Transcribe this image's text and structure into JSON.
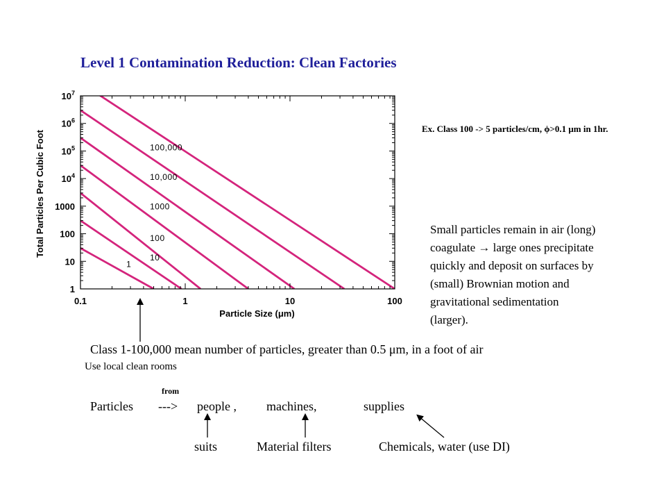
{
  "title": "Level 1 Contamination Reduction: Clean Factories",
  "chart_data": {
    "type": "line",
    "xlabel": "Particle Size (μm)",
    "ylabel": "Total Particles Per Cubic Foot",
    "x_scale": "log",
    "y_scale": "log",
    "xlim": [
      0.1,
      100
    ],
    "ylim": [
      1,
      10000000
    ],
    "x_ticks": [
      "0.1",
      "1",
      "10",
      "100"
    ],
    "y_ticks": [
      "1",
      "10",
      "100",
      "1000",
      "10^4",
      "10^5",
      "10^6",
      "10^7"
    ],
    "grid": false,
    "series_color": "#d4247c",
    "series": [
      {
        "label": "1",
        "x": [
          0.1,
          0.5
        ],
        "y": [
          30,
          1
        ]
      },
      {
        "label": "10",
        "x": [
          0.1,
          0.92
        ],
        "y": [
          300,
          1
        ]
      },
      {
        "label": "100",
        "x": [
          0.1,
          1.4
        ],
        "y": [
          3000,
          1
        ]
      },
      {
        "label": "1000",
        "x": [
          0.1,
          4
        ],
        "y": [
          30000,
          1
        ]
      },
      {
        "label": "10,000",
        "x": [
          0.1,
          11
        ],
        "y": [
          300000,
          1
        ]
      },
      {
        "label": "100,000",
        "x": [
          0.1,
          33
        ],
        "y": [
          3000000,
          1
        ]
      },
      {
        "label": "",
        "x": [
          0.1,
          100
        ],
        "y": [
          30000000,
          1
        ]
      }
    ]
  },
  "example": "Ex. Class 100 -> 5 particles/cm, ϕ>0.1 μm in 1hr.",
  "explanation": [
    "Small particles remain in air  (long)",
    "coagulate → large ones precipitate",
    "quickly and deposit on surfaces by",
    "(small) Brownian motion and",
    "gravitational sedimentation",
    "(larger)."
  ],
  "class_note": "Class 1-100,000 mean number of particles, greater than 0.5 μm, in a foot of air",
  "local_note": "Use local clean rooms",
  "from_label": "from",
  "sources": {
    "particles": "Particles",
    "arrow": "--->",
    "people": "people ,",
    "machines": "machines,",
    "supplies": "supplies"
  },
  "solutions": {
    "suits": "suits",
    "filters": "Material filters",
    "chemicals": "Chemicals, water (use DI)"
  }
}
